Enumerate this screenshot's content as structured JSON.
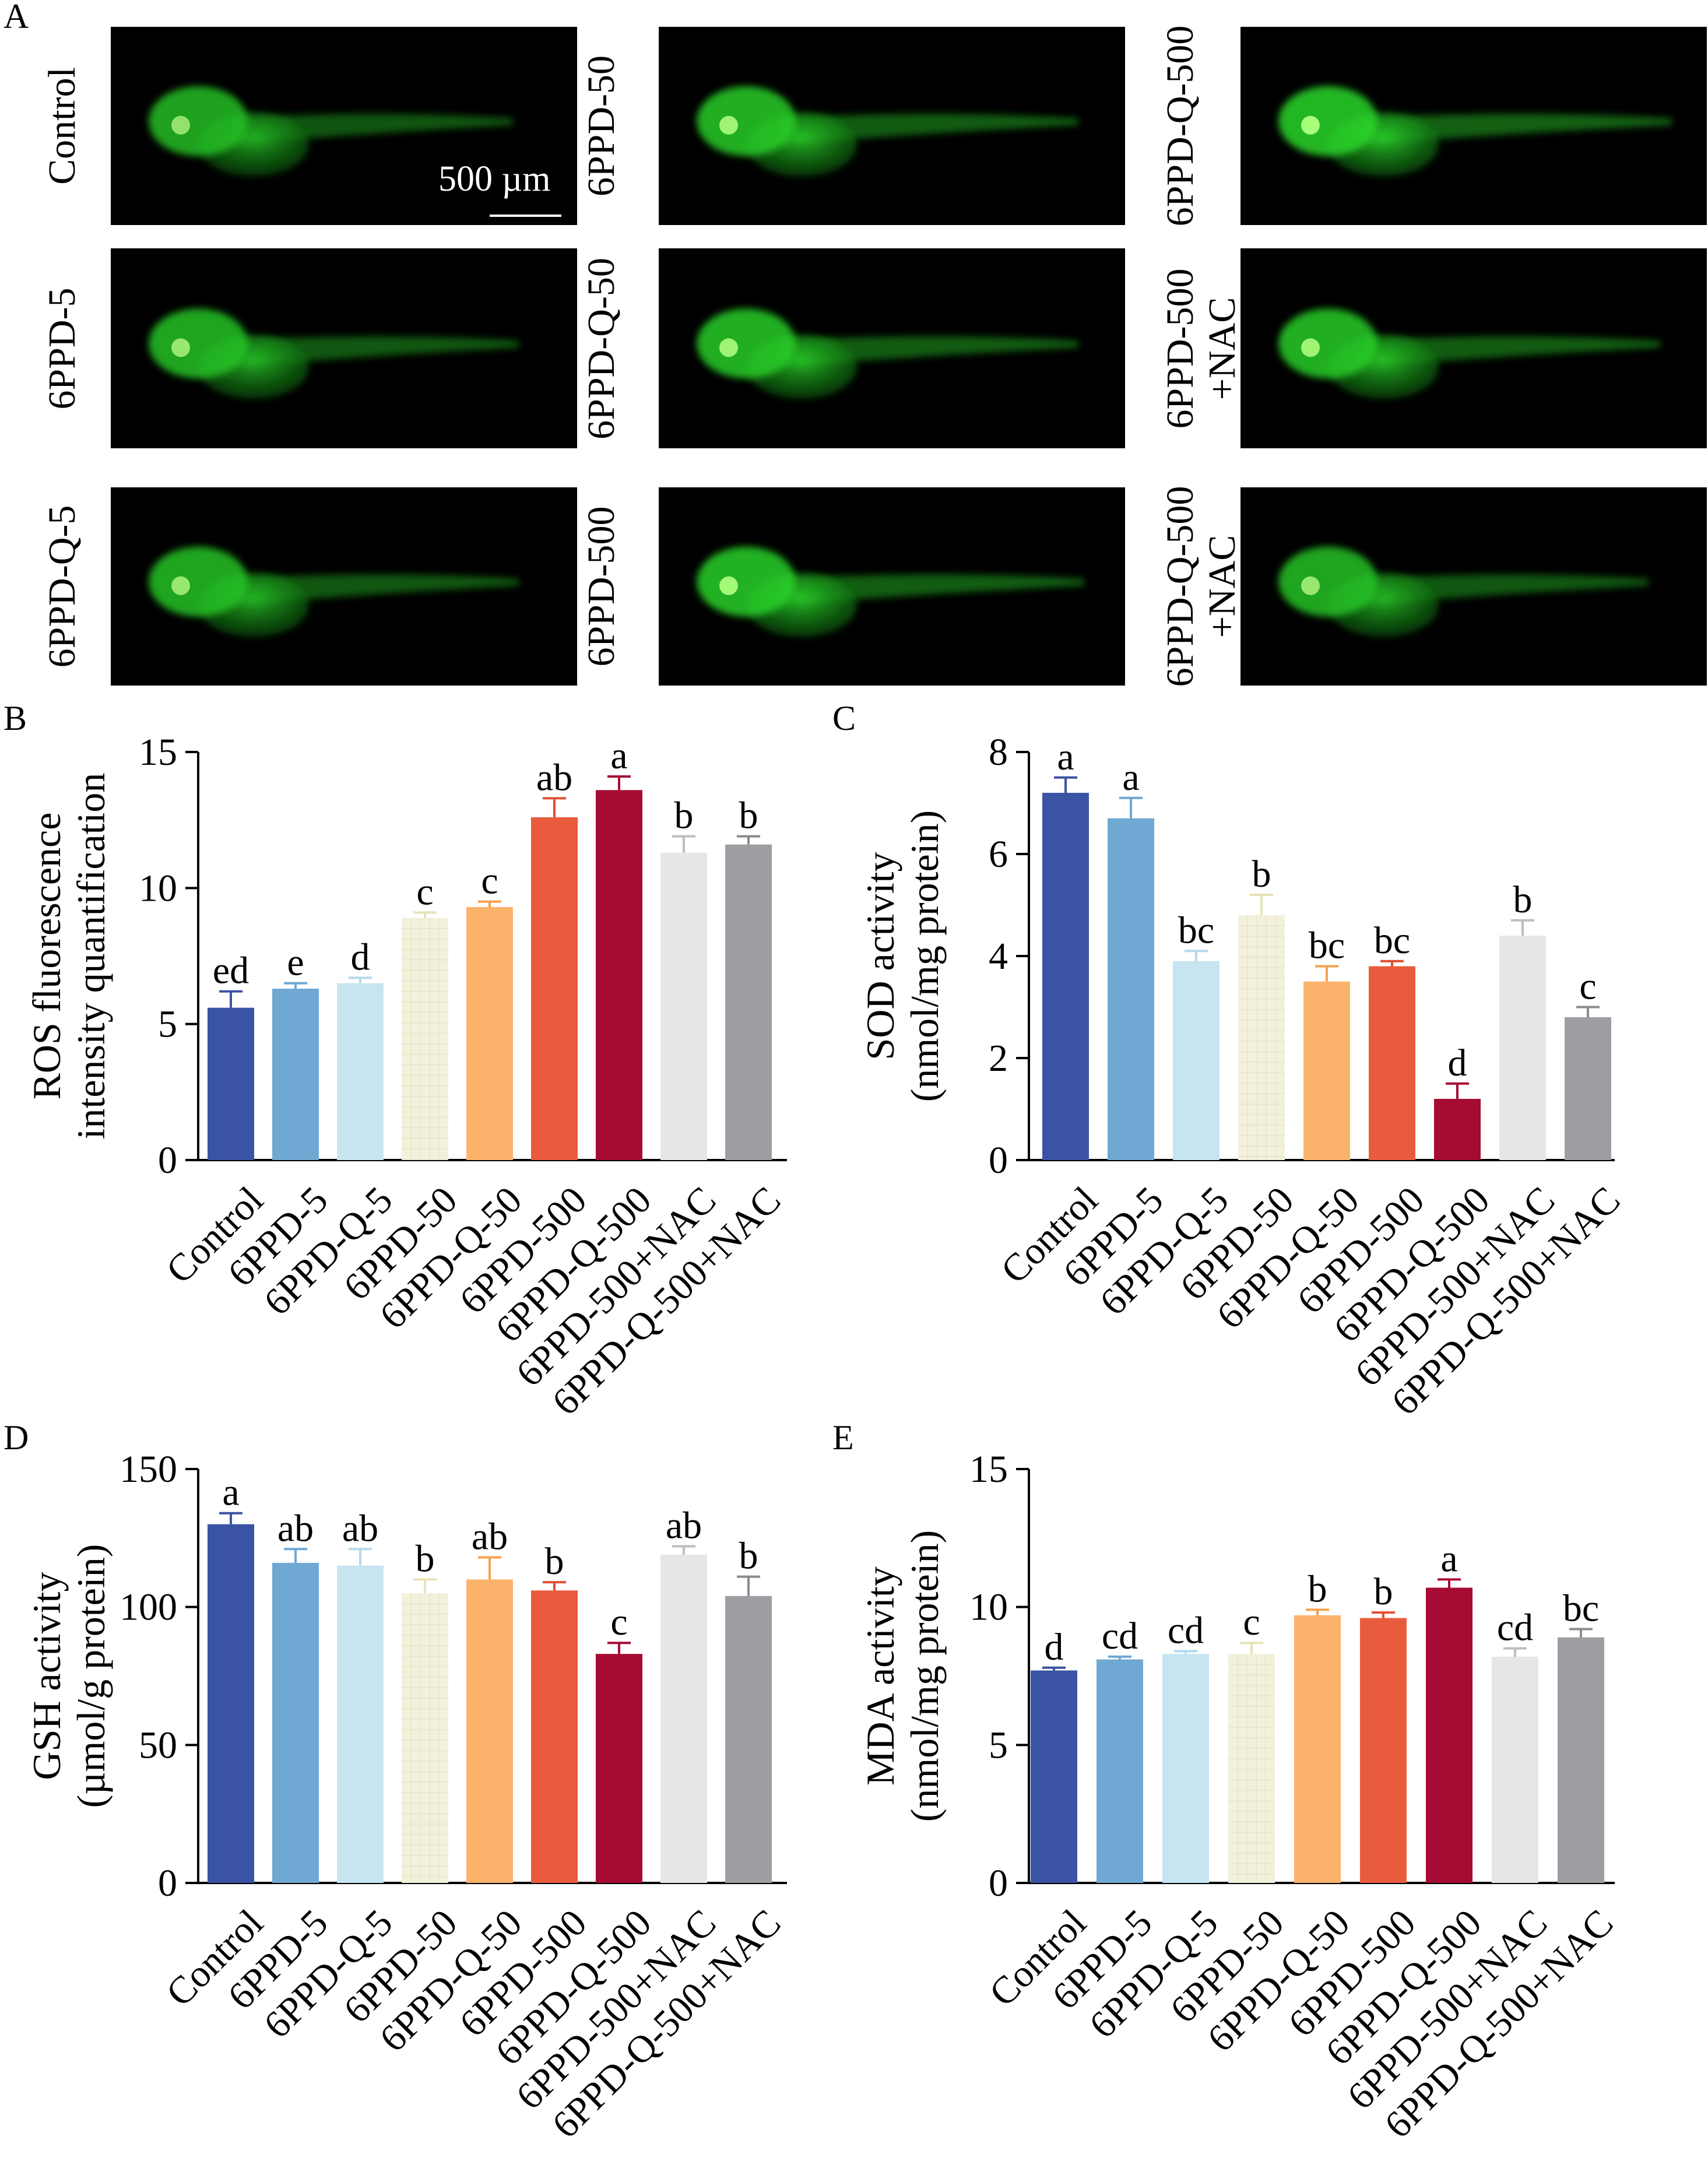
{
  "figure": {
    "panel_letters": {
      "a": "A",
      "b": "B",
      "c": "C",
      "d": "D",
      "e": "E"
    },
    "scale_bar_label": "500 µm",
    "image_panels": [
      {
        "label_lines": [
          "Control"
        ],
        "fish_brightness": 0.75
      },
      {
        "label_lines": [
          "6PPD-5"
        ],
        "fish_brightness": 0.8
      },
      {
        "label_lines": [
          "6PPD-Q-5"
        ],
        "fish_brightness": 0.8
      },
      {
        "label_lines": [
          "6PPD-50"
        ],
        "fish_brightness": 0.9
      },
      {
        "label_lines": [
          "6PPD-Q-50"
        ],
        "fish_brightness": 0.9
      },
      {
        "label_lines": [
          "6PPD-500"
        ],
        "fish_brightness": 0.95
      },
      {
        "label_lines": [
          "6PPD-Q-500"
        ],
        "fish_brightness": 1.0
      },
      {
        "label_lines": [
          "6PPD-500",
          "+NAC"
        ],
        "fish_brightness": 0.9
      },
      {
        "label_lines": [
          "6PPD-Q-500",
          "+NAC"
        ],
        "fish_brightness": 0.8
      }
    ]
  },
  "chart_data": [
    {
      "id": "B",
      "type": "bar",
      "ylabel_lines": [
        "ROS fluorescence",
        "intensity quantification"
      ],
      "ylim": [
        0,
        15
      ],
      "yticks": [
        0,
        5,
        10,
        15
      ],
      "categories": [
        "Control",
        "6PPD-5",
        "6PPD-Q-5",
        "6PPD-50",
        "6PPD-Q-50",
        "6PPD-500",
        "6PPD-Q-500",
        "6PPD-500+NAC",
        "6PPD-Q-500+NAC"
      ],
      "values": [
        5.6,
        6.3,
        6.5,
        8.9,
        9.3,
        12.6,
        13.6,
        11.3,
        11.6
      ],
      "errors": [
        0.6,
        0.2,
        0.2,
        0.2,
        0.2,
        0.7,
        0.5,
        0.6,
        0.3
      ],
      "letters": [
        "ed",
        "e",
        "d",
        "c",
        "c",
        "ab",
        "a",
        "b",
        "b"
      ]
    },
    {
      "id": "C",
      "type": "bar",
      "ylabel_lines": [
        "SOD activity",
        "(nmol/mg protein)"
      ],
      "ylim": [
        0,
        8
      ],
      "yticks": [
        0,
        2,
        4,
        6,
        8
      ],
      "categories": [
        "Control",
        "6PPD-5",
        "6PPD-Q-5",
        "6PPD-50",
        "6PPD-Q-50",
        "6PPD-500",
        "6PPD-Q-500",
        "6PPD-500+NAC",
        "6PPD-Q-500+NAC"
      ],
      "values": [
        7.2,
        6.7,
        3.9,
        4.8,
        3.5,
        3.8,
        1.2,
        4.4,
        2.8
      ],
      "errors": [
        0.3,
        0.4,
        0.2,
        0.4,
        0.3,
        0.1,
        0.3,
        0.3,
        0.2
      ],
      "letters": [
        "a",
        "a",
        "bc",
        "b",
        "bc",
        "bc",
        "d",
        "b",
        "c"
      ]
    },
    {
      "id": "D",
      "type": "bar",
      "ylabel_lines": [
        "GSH activity",
        "(µmol/g protein)"
      ],
      "ylim": [
        0,
        150
      ],
      "yticks": [
        0,
        50,
        100,
        150
      ],
      "categories": [
        "Control",
        "6PPD-5",
        "6PPD-Q-5",
        "6PPD-50",
        "6PPD-Q-50",
        "6PPD-500",
        "6PPD-Q-500",
        "6PPD-500+NAC",
        "6PPD-Q-500+NAC"
      ],
      "values": [
        130,
        116,
        115,
        105,
        110,
        106,
        83,
        119,
        104
      ],
      "errors": [
        4,
        5,
        6,
        5,
        8,
        3,
        4,
        3,
        7
      ],
      "letters": [
        "a",
        "ab",
        "ab",
        "b",
        "ab",
        "b",
        "c",
        "ab",
        "b"
      ]
    },
    {
      "id": "E",
      "type": "bar",
      "ylabel_lines": [
        "MDA activity",
        "(nmol/mg protein)"
      ],
      "ylim": [
        0,
        15
      ],
      "yticks": [
        0,
        5,
        10,
        15
      ],
      "categories": [
        "Control",
        "6PPD-5",
        "6PPD-Q-5",
        "6PPD-50",
        "6PPD-Q-50",
        "6PPD-500",
        "6PPD-Q-500",
        "6PPD-500+NAC",
        "6PPD-Q-500+NAC"
      ],
      "values": [
        7.7,
        8.1,
        8.3,
        8.3,
        9.7,
        9.6,
        10.7,
        8.2,
        8.9
      ],
      "errors": [
        0.1,
        0.1,
        0.1,
        0.4,
        0.2,
        0.2,
        0.3,
        0.3,
        0.3
      ],
      "letters": [
        "d",
        "cd",
        "cd",
        "c",
        "b",
        "b",
        "a",
        "cd",
        "bc"
      ]
    }
  ],
  "colors": {
    "bars": [
      "#3a53a4",
      "#6fa8d2",
      "#c6e5f1",
      "#f3f1dc",
      "#fbb26a",
      "#e95b3d",
      "#a50b33",
      "#e6e6e6",
      "#9d9ea2"
    ],
    "error_bars": [
      "#3a53a4",
      "#6fa8d2",
      "#b4d9ec",
      "#e7e3b8",
      "#f7a050",
      "#e04f32",
      "#a50b33",
      "#bdbdbd",
      "#8a8b90"
    ],
    "fluorescence": "#2bd62b"
  }
}
